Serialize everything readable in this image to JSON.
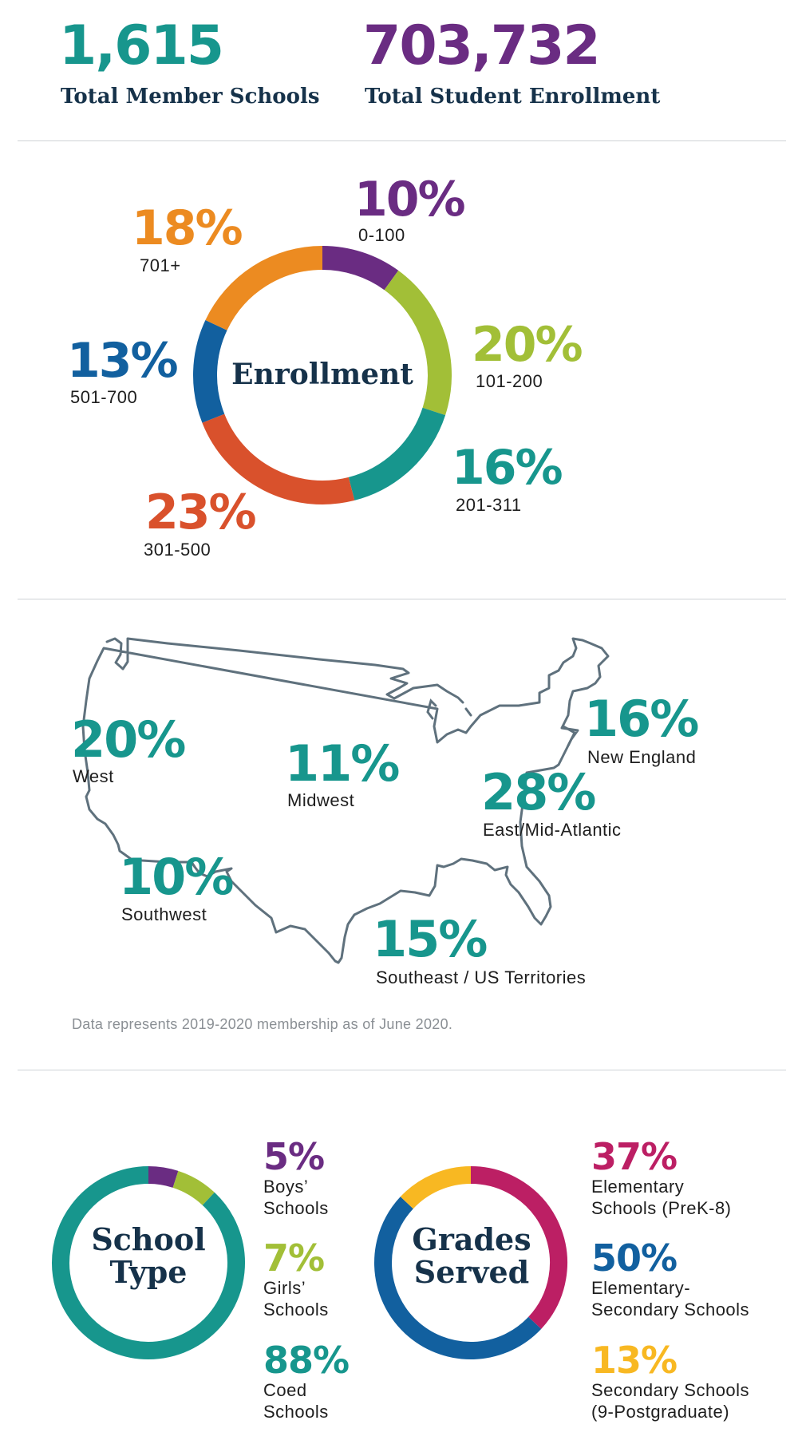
{
  "colors": {
    "teal": "#17968d",
    "purple": "#6a2c82",
    "orange": "#ec8b21",
    "green": "#a2bf37",
    "blue": "#12609f",
    "red": "#d9512c",
    "magenta": "#bc1f64",
    "yellow": "#f8b822",
    "navy": "#16324a",
    "map_stroke": "#5f717d"
  },
  "totals": {
    "schools_value": "1,615",
    "schools_label": "Total Member Schools",
    "enrollment_value": "703,732",
    "enrollment_label": "Total Student Enrollment"
  },
  "chart_data": [
    {
      "type": "pie",
      "title": "Enrollment",
      "slices": [
        {
          "label": "0-100",
          "value": 10,
          "text": "10%",
          "color": "#6a2c82"
        },
        {
          "label": "101-200",
          "value": 20,
          "text": "20%",
          "color": "#a2bf37"
        },
        {
          "label": "201-311",
          "value": 16,
          "text": "16%",
          "color": "#17968d"
        },
        {
          "label": "301-500",
          "value": 23,
          "text": "23%",
          "color": "#d9512c"
        },
        {
          "label": "501-700",
          "value": 13,
          "text": "13%",
          "color": "#12609f"
        },
        {
          "label": "701+",
          "value": 18,
          "text": "18%",
          "color": "#ec8b21"
        }
      ]
    },
    {
      "type": "table",
      "title": "",
      "regions": [
        {
          "label": "West",
          "value": 20,
          "text": "20%"
        },
        {
          "label": "Midwest",
          "value": 11,
          "text": "11%"
        },
        {
          "label": "New England",
          "value": 16,
          "text": "16%"
        },
        {
          "label": "East/Mid-Atlantic",
          "value": 28,
          "text": "28%"
        },
        {
          "label": "Southwest",
          "value": 10,
          "text": "10%"
        },
        {
          "label": "Southeast / US Territories",
          "value": 15,
          "text": "15%"
        }
      ]
    },
    {
      "type": "pie",
      "title_line1": "School",
      "title_line2": "Type",
      "slices": [
        {
          "label_line1": "Boys’",
          "label_line2": "Schools",
          "value": 5,
          "text": "5%",
          "color": "#6a2c82"
        },
        {
          "label_line1": "Girls’",
          "label_line2": "Schools",
          "value": 7,
          "text": "7%",
          "color": "#a2bf37"
        },
        {
          "label_line1": "Coed",
          "label_line2": "Schools",
          "value": 88,
          "text": "88%",
          "color": "#17968d"
        }
      ]
    },
    {
      "type": "pie",
      "title_line1": "Grades",
      "title_line2": "Served",
      "slices": [
        {
          "label_line1": "Elementary",
          "label_line2": "Schools (PreK-8)",
          "value": 37,
          "text": "37%",
          "color": "#bc1f64"
        },
        {
          "label_line1": "Elementary-",
          "label_line2": "Secondary Schools",
          "value": 50,
          "text": "50%",
          "color": "#12609f"
        },
        {
          "label_line1": "Secondary Schools",
          "label_line2": "(9-Postgraduate)",
          "value": 13,
          "text": "13%",
          "color": "#f8b822"
        }
      ]
    }
  ],
  "footnote": "Data represents 2019-2020 membership as of June 2020."
}
